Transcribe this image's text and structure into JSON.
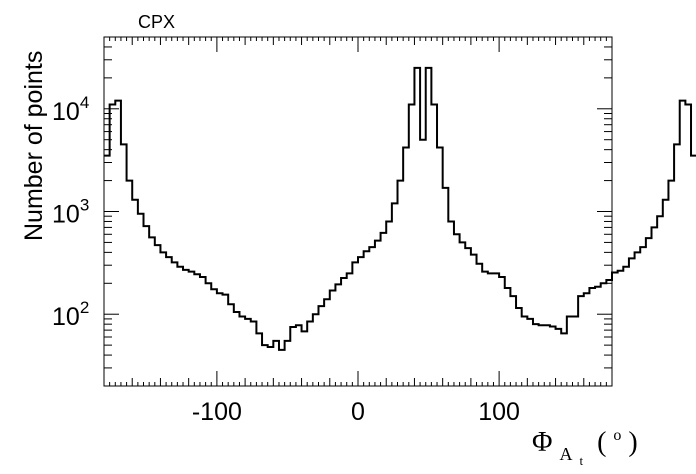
{
  "chart_data": {
    "type": "histogram",
    "title": "CPX",
    "xlabel": {
      "symbol": "Φ",
      "subscript": "A",
      "subsubscript": "t",
      "unit_open": "(",
      "unit": "o",
      "unit_close": ")"
    },
    "ylabel": "Number of points",
    "xlim": [
      -180,
      180
    ],
    "ylim": [
      20,
      50000
    ],
    "y_scale": "log",
    "x_ticks": [
      -100,
      0,
      100
    ],
    "x_tick_labels": [
      "-100",
      "0",
      "100"
    ],
    "y_ticks": [
      100,
      1000,
      10000
    ],
    "y_tick_labels": [
      {
        "base": "10",
        "exp": "2"
      },
      {
        "base": "10",
        "exp": "3"
      },
      {
        "base": "10",
        "exp": "4"
      }
    ],
    "bin_edges_start": -180,
    "bin_width": 4,
    "counts": [
      3500,
      11000,
      12000,
      4500,
      2000,
      1300,
      950,
      720,
      560,
      470,
      400,
      360,
      320,
      290,
      270,
      260,
      245,
      230,
      200,
      175,
      160,
      155,
      125,
      105,
      95,
      90,
      85,
      65,
      50,
      48,
      55,
      45,
      55,
      75,
      78,
      68,
      85,
      100,
      120,
      140,
      170,
      195,
      225,
      250,
      320,
      360,
      410,
      450,
      520,
      620,
      800,
      1200,
      2000,
      4200,
      11000,
      25000,
      5000,
      25000,
      11000,
      4200,
      1700,
      800,
      600,
      500,
      440,
      380,
      310,
      260,
      250,
      250,
      230,
      180,
      150,
      115,
      95,
      90,
      80,
      78,
      78,
      76,
      72,
      65,
      95,
      95,
      150,
      160,
      180,
      185,
      200,
      215,
      255,
      265,
      290,
      350,
      400,
      450,
      550,
      700,
      900,
      1300,
      2000,
      4500,
      12000,
      11000,
      3500
    ],
    "grid": false,
    "legend": "none",
    "line_color": "#000000"
  }
}
